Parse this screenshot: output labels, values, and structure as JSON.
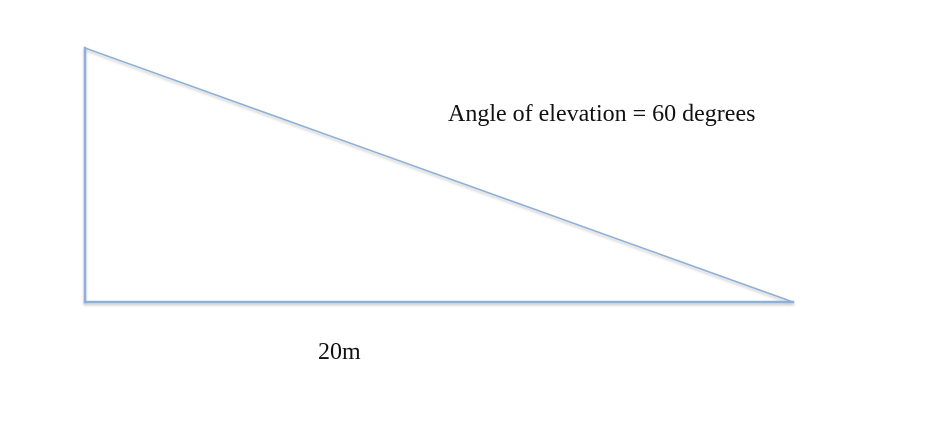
{
  "diagram": {
    "angle_label": "Angle of elevation = 60 degrees",
    "base_label": "20m",
    "line_color": "#8fb0d8"
  }
}
